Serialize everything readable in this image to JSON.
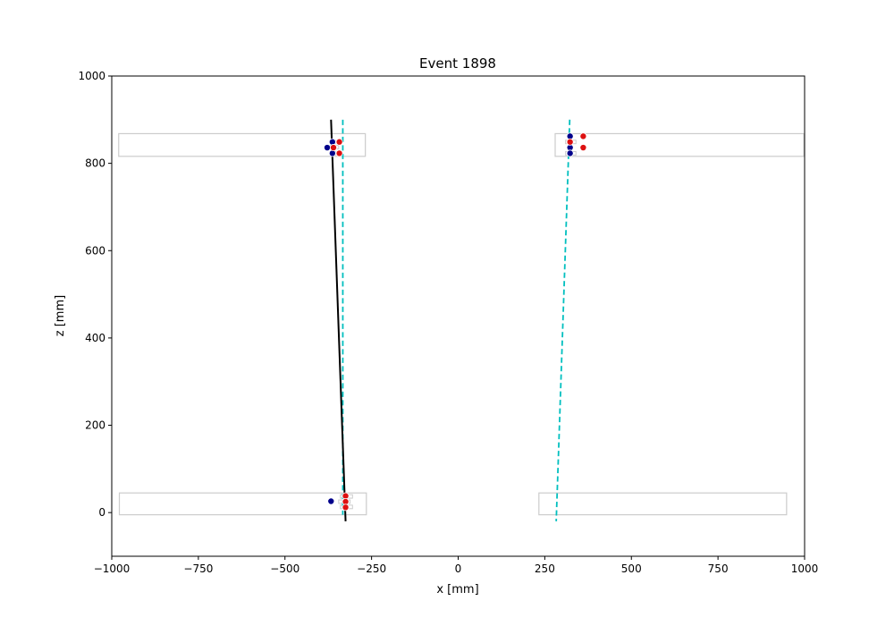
{
  "chart_data": {
    "type": "scatter",
    "title": "Event 1898",
    "xlabel": "x [mm]",
    "ylabel": "z [mm]",
    "xlim": [
      -1000,
      1000
    ],
    "ylim": [
      -100,
      1000
    ],
    "xticks": [
      -1000,
      -750,
      -500,
      -250,
      0,
      250,
      500,
      750,
      1000
    ],
    "yticks": [
      0,
      200,
      400,
      600,
      800,
      1000
    ],
    "grid": false,
    "colors": {
      "detector_outline": "#cccccc",
      "hit_blue": "#00008b",
      "hit_red": "#dd1111",
      "reco_track": "#000000",
      "dashed_track": "#00bfbf",
      "segment_box": "#cccccc"
    },
    "detector_modules": [
      {
        "x": [
          -980,
          -268
        ],
        "z": [
          816,
          868
        ]
      },
      {
        "x": [
          280,
          998
        ],
        "z": [
          816,
          868
        ]
      },
      {
        "x": [
          -978,
          -265
        ],
        "z": [
          -5,
          45
        ]
      },
      {
        "x": [
          233,
          948
        ],
        "z": [
          -5,
          45
        ]
      }
    ],
    "hit_segments": [
      {
        "x": [
          -360,
          -345
        ],
        "z": [
          845,
          853
        ]
      },
      {
        "x": [
          -378,
          -345
        ],
        "z": [
          833,
          841
        ]
      },
      {
        "x": [
          -358,
          -335
        ],
        "z": [
          819,
          827
        ]
      },
      {
        "x": [
          310,
          340
        ],
        "z": [
          845,
          853
        ]
      },
      {
        "x": [
          310,
          340
        ],
        "z": [
          819,
          827
        ]
      },
      {
        "x": [
          -340,
          -305
        ],
        "z": [
          33,
          41
        ]
      },
      {
        "x": [
          -345,
          -312
        ],
        "z": [
          21,
          29
        ]
      },
      {
        "x": [
          -340,
          -305
        ],
        "z": [
          9,
          17
        ]
      }
    ],
    "hits_blue": [
      {
        "x": -363,
        "z": 849
      },
      {
        "x": -378,
        "z": 836
      },
      {
        "x": -363,
        "z": 823
      },
      {
        "x": 323,
        "z": 862
      },
      {
        "x": 323,
        "z": 836
      },
      {
        "x": 323,
        "z": 823
      },
      {
        "x": -367,
        "z": 26
      }
    ],
    "hits_red": [
      {
        "x": -343,
        "z": 849
      },
      {
        "x": -360,
        "z": 836
      },
      {
        "x": -343,
        "z": 823
      },
      {
        "x": 361,
        "z": 862
      },
      {
        "x": 323,
        "z": 849
      },
      {
        "x": 361,
        "z": 836
      },
      {
        "x": -325,
        "z": 38
      },
      {
        "x": -325,
        "z": 25
      },
      {
        "x": -325,
        "z": 12
      }
    ],
    "reco_track": {
      "x": [
        -367,
        -325
      ],
      "z": [
        900,
        -20
      ]
    },
    "dashed_tracks": [
      {
        "x": [
          -333,
          -333
        ],
        "z": [
          900,
          -5
        ]
      },
      {
        "x": [
          322,
          283
        ],
        "z": [
          900,
          -20
        ]
      }
    ]
  }
}
